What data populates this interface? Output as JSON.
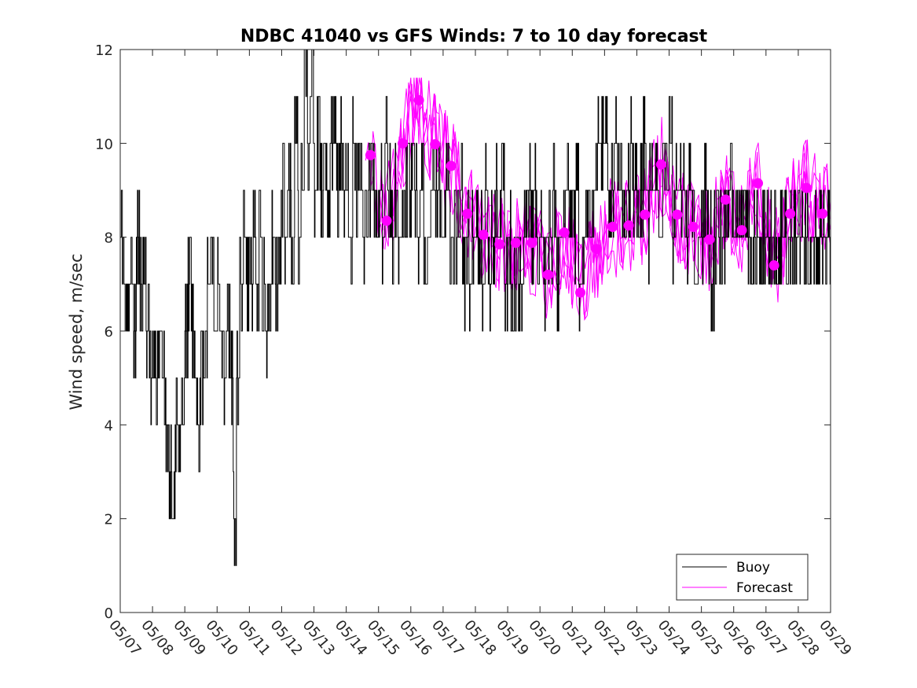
{
  "chart_data": {
    "type": "line",
    "title": "NDBC 41040 vs GFS Winds: 7 to 10 day forecast",
    "xlabel": "",
    "ylabel": "Wind speed, m/sec",
    "x_tick_labels": [
      "05/07",
      "05/08",
      "05/09",
      "05/10",
      "05/11",
      "05/12",
      "05/13",
      "05/14",
      "05/15",
      "05/16",
      "05/17",
      "05/18",
      "05/19",
      "05/20",
      "05/21",
      "05/22",
      "05/23",
      "05/24",
      "05/25",
      "05/26",
      "05/27",
      "05/28",
      "05/29"
    ],
    "xlim_days": [
      0,
      22
    ],
    "ylim": [
      0,
      12
    ],
    "yticks": [
      0,
      2,
      4,
      6,
      8,
      10,
      12
    ],
    "grid": false,
    "legend": {
      "placement": "bottom-right",
      "entries": [
        "Buoy",
        "Forecast"
      ]
    },
    "colors": {
      "buoy": "#000000",
      "forecast": "#ff00ff"
    },
    "series": [
      {
        "name": "Buoy",
        "x_day": [
          0,
          0.1,
          0.2,
          0.3,
          0.4,
          0.5,
          0.6,
          0.7,
          0.8,
          0.9,
          1.0,
          1.1,
          1.2,
          1.3,
          1.4,
          1.5,
          1.6,
          1.7,
          1.8,
          1.9,
          2.0,
          2.1,
          2.2,
          2.3,
          2.4,
          2.5,
          2.6,
          2.7,
          2.8,
          2.9,
          3.0,
          3.1,
          3.2,
          3.3,
          3.4,
          3.5,
          3.6,
          3.7,
          3.8,
          3.9,
          4.0,
          4.1,
          4.2,
          4.3,
          4.4,
          4.5,
          4.6,
          4.7,
          4.8,
          4.9,
          5.0,
          5.1,
          5.2,
          5.3,
          5.4,
          5.5,
          5.6,
          5.7,
          5.8,
          5.9,
          6.0,
          6.1,
          6.2,
          6.3,
          6.4,
          6.5,
          6.6,
          6.7,
          6.8,
          6.9,
          7.0,
          7.1,
          7.2,
          7.3,
          7.4,
          7.5,
          7.6,
          7.7,
          7.8,
          7.9,
          8.0,
          8.1,
          8.2,
          8.3,
          8.4,
          8.5,
          8.6,
          8.7,
          8.8,
          8.9,
          9.0,
          9.1,
          9.2,
          9.3,
          9.4,
          9.5,
          9.6,
          9.7,
          9.8,
          9.9,
          10.0,
          10.1,
          10.2,
          10.3,
          10.4,
          10.5,
          10.6,
          10.7,
          10.8,
          10.9,
          11.0,
          11.1,
          11.2,
          11.3,
          11.4,
          11.5,
          11.6,
          11.7,
          11.8,
          11.9,
          12.0,
          12.1,
          12.2,
          12.3,
          12.4,
          12.5,
          12.6,
          12.7,
          12.8,
          12.9,
          13.0,
          13.1,
          13.2,
          13.3,
          13.4,
          13.5,
          13.6,
          13.7,
          13.8,
          13.9,
          14.0,
          14.1,
          14.2,
          14.3,
          14.4,
          14.5,
          14.6,
          14.7,
          14.8,
          14.9,
          15.0,
          15.1,
          15.2,
          15.3,
          15.4,
          15.5,
          15.6,
          15.7,
          15.8,
          15.9,
          16.0,
          16.1,
          16.2,
          16.3,
          16.4,
          16.5,
          16.6,
          16.7,
          16.8,
          16.9,
          17.0,
          17.1,
          17.2,
          17.3,
          17.4,
          17.5,
          17.6,
          17.7,
          17.8,
          17.9,
          18.0,
          18.1,
          18.2,
          18.3,
          18.4,
          18.5,
          18.6,
          18.7,
          18.8,
          18.9,
          19.0,
          19.1,
          19.2,
          19.3,
          19.4,
          19.5,
          19.6,
          19.7,
          19.8,
          19.9,
          20.0,
          20.1,
          20.2,
          20.3,
          20.4,
          20.5,
          20.6,
          20.7,
          20.8,
          20.9,
          21.0,
          21.1,
          21.2,
          21.3,
          21.4,
          21.5,
          21.6,
          21.7,
          21.8,
          21.9,
          22.0
        ],
        "values": [
          8,
          7,
          6,
          7,
          6,
          8,
          7,
          7,
          6,
          5,
          6,
          5,
          6,
          5,
          4,
          3,
          2,
          4,
          3,
          4,
          6,
          7,
          6,
          5,
          4,
          5,
          6,
          7,
          8,
          6,
          7,
          6,
          5,
          6,
          5,
          2,
          5,
          7,
          8,
          7,
          7,
          8,
          7,
          8,
          7,
          6,
          7,
          8,
          7,
          8,
          9,
          8,
          9,
          7,
          10,
          8,
          9,
          12,
          10,
          11,
          9,
          10,
          9,
          10,
          9,
          10,
          10,
          9,
          10,
          9,
          9,
          8,
          10,
          9,
          9,
          8,
          8,
          9,
          9,
          8,
          9,
          8,
          10,
          9,
          8,
          9,
          8,
          8,
          9,
          9,
          9,
          9,
          8,
          9,
          7,
          8,
          9,
          9,
          9,
          8,
          8,
          9,
          8,
          8,
          8,
          9,
          7,
          8,
          7,
          8,
          8,
          8,
          7,
          9,
          7,
          8,
          9,
          8,
          9,
          7,
          8,
          6,
          7,
          7,
          7,
          8,
          9,
          8,
          9,
          7,
          8,
          7,
          8,
          8,
          9,
          7,
          8,
          8,
          9,
          8,
          8,
          9,
          7,
          8,
          8,
          8,
          9,
          9,
          10,
          10,
          10,
          8,
          9,
          10,
          9,
          9,
          8,
          9,
          10,
          9,
          8,
          9,
          10,
          8,
          9,
          9,
          9,
          8,
          9,
          9,
          10,
          8,
          9,
          9,
          9,
          8,
          9,
          8,
          7,
          8,
          8,
          9,
          8,
          7,
          8,
          8,
          8,
          8,
          8,
          9,
          8,
          8,
          8,
          8,
          8,
          8,
          8,
          8,
          8,
          8,
          8,
          8,
          8,
          8,
          8,
          8,
          8,
          8,
          8,
          8,
          8,
          8,
          8,
          8,
          8,
          8,
          8,
          8,
          8,
          8,
          8
        ]
      },
      {
        "name": "Forecast",
        "markers": {
          "x_day": [
            7.75,
            8.25,
            8.75,
            9.25,
            9.75,
            10.25,
            10.75,
            11.25,
            11.75,
            12.25,
            12.75,
            13.25,
            13.75,
            14.25,
            14.75,
            15.25,
            15.75,
            16.25,
            16.75,
            17.25,
            17.75,
            18.25,
            18.75,
            19.25,
            19.75,
            20.25,
            20.75,
            21.25,
            21.75
          ],
          "values": [
            9.75,
            8.35,
            10.0,
            10.92,
            9.98,
            9.52,
            8.5,
            8.05,
            7.85,
            7.88,
            7.88,
            7.2,
            8.1,
            6.82,
            7.75,
            8.22,
            8.25,
            8.48,
            9.55,
            8.48,
            8.22,
            7.95,
            8.8,
            8.15,
            9.15,
            7.4,
            8.5,
            9.05,
            8.5
          ]
        }
      }
    ]
  }
}
